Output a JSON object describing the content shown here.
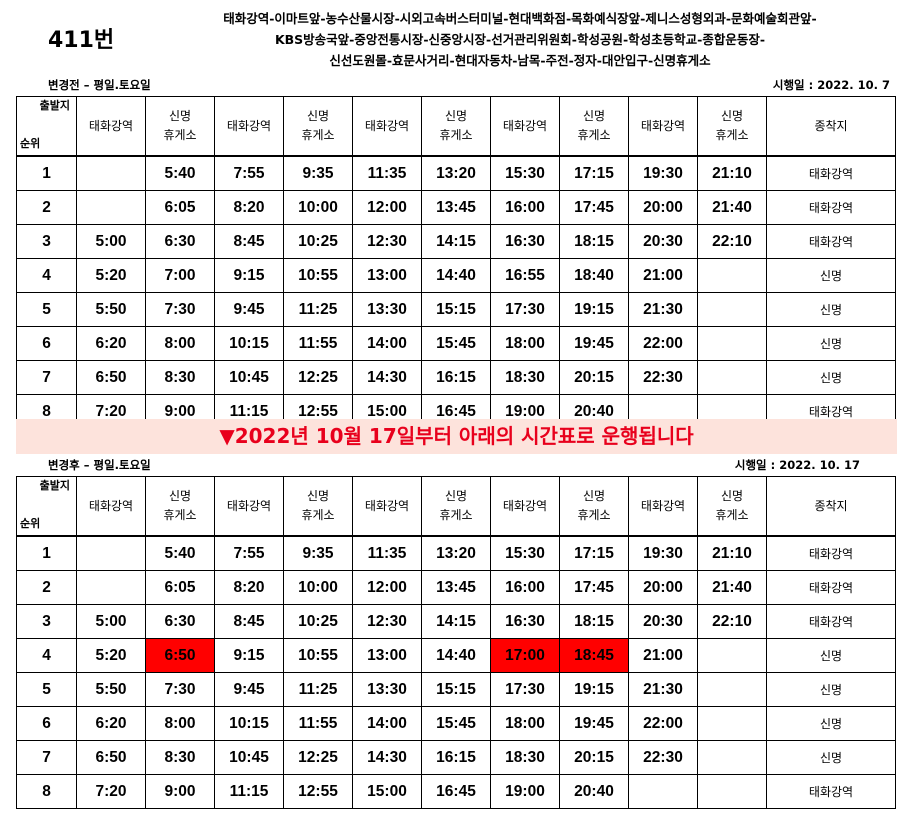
{
  "route_number": "411번",
  "stops_line1": "태화강역-이마트앞-농수산물시장-시외고속버스터미널-현대백화점-목화예식장앞-제니스성형외과-문화예술회관앞-",
  "stops_line2": "KBS방송국앞-중앙전통시장-신중앙시장-선거관리위원회-학성공원-학성초등학교-종합운동장-",
  "stops_line3": "신선도원몰-효문사거리-현대자동차-남목-주전-정자-대안입구-신명휴게소",
  "before": {
    "label": "변경전 – 평일.토요일",
    "effective": "시행일 : 2022. 10. 7"
  },
  "banner": "▼2022년 10월 17일부터 아래의 시간표로 운행됩니다",
  "after": {
    "label": "변경후 – 평일.토요일",
    "effective": "시행일 : 2022. 10. 17"
  },
  "header": {
    "corner_top": "출발지",
    "corner_bottom": "순위",
    "c1": "태화강역",
    "c2a": "신명",
    "c2b": "휴게소",
    "c3": "태화강역",
    "c4a": "신명",
    "c4b": "휴게소",
    "c5": "태화강역",
    "c6a": "신명",
    "c6b": "휴게소",
    "c7": "태화강역",
    "c8a": "신명",
    "c8b": "휴게소",
    "c9": "태화강역",
    "c10a": "신명",
    "c10b": "휴게소",
    "dest": "종착지"
  },
  "before_rows": [
    [
      "1",
      "",
      "5:40",
      "7:55",
      "9:35",
      "11:35",
      "13:20",
      "15:30",
      "17:15",
      "19:30",
      "21:10",
      "태화강역"
    ],
    [
      "2",
      "",
      "6:05",
      "8:20",
      "10:00",
      "12:00",
      "13:45",
      "16:00",
      "17:45",
      "20:00",
      "21:40",
      "태화강역"
    ],
    [
      "3",
      "5:00",
      "6:30",
      "8:45",
      "10:25",
      "12:30",
      "14:15",
      "16:30",
      "18:15",
      "20:30",
      "22:10",
      "태화강역"
    ],
    [
      "4",
      "5:20",
      "7:00",
      "9:15",
      "10:55",
      "13:00",
      "14:40",
      "16:55",
      "18:40",
      "21:00",
      "",
      "신명"
    ],
    [
      "5",
      "5:50",
      "7:30",
      "9:45",
      "11:25",
      "13:30",
      "15:15",
      "17:30",
      "19:15",
      "21:30",
      "",
      "신명"
    ],
    [
      "6",
      "6:20",
      "8:00",
      "10:15",
      "11:55",
      "14:00",
      "15:45",
      "18:00",
      "19:45",
      "22:00",
      "",
      "신명"
    ],
    [
      "7",
      "6:50",
      "8:30",
      "10:45",
      "12:25",
      "14:30",
      "16:15",
      "18:30",
      "20:15",
      "22:30",
      "",
      "신명"
    ],
    [
      "8",
      "7:20",
      "9:00",
      "11:15",
      "12:55",
      "15:00",
      "16:45",
      "19:00",
      "20:40",
      "",
      "",
      "태화강역"
    ]
  ],
  "after_rows": [
    [
      "1",
      "",
      "5:40",
      "7:55",
      "9:35",
      "11:35",
      "13:20",
      "15:30",
      "17:15",
      "19:30",
      "21:10",
      "태화강역"
    ],
    [
      "2",
      "",
      "6:05",
      "8:20",
      "10:00",
      "12:00",
      "13:45",
      "16:00",
      "17:45",
      "20:00",
      "21:40",
      "태화강역"
    ],
    [
      "3",
      "5:00",
      "6:30",
      "8:45",
      "10:25",
      "12:30",
      "14:15",
      "16:30",
      "18:15",
      "20:30",
      "22:10",
      "태화강역"
    ],
    [
      "4",
      "5:20",
      "6:50",
      "9:15",
      "10:55",
      "13:00",
      "14:40",
      "17:00",
      "18:45",
      "21:00",
      "",
      "신명"
    ],
    [
      "5",
      "5:50",
      "7:30",
      "9:45",
      "11:25",
      "13:30",
      "15:15",
      "17:30",
      "19:15",
      "21:30",
      "",
      "신명"
    ],
    [
      "6",
      "6:20",
      "8:00",
      "10:15",
      "11:55",
      "14:00",
      "15:45",
      "18:00",
      "19:45",
      "22:00",
      "",
      "신명"
    ],
    [
      "7",
      "6:50",
      "8:30",
      "10:45",
      "12:25",
      "14:30",
      "16:15",
      "18:30",
      "20:15",
      "22:30",
      "",
      "신명"
    ],
    [
      "8",
      "7:20",
      "9:00",
      "11:15",
      "12:55",
      "15:00",
      "16:45",
      "19:00",
      "20:40",
      "",
      "",
      "태화강역"
    ]
  ],
  "highlight_color": "#ff0000",
  "banner_color": "#e8001c",
  "banner_background": "#fde3dc"
}
